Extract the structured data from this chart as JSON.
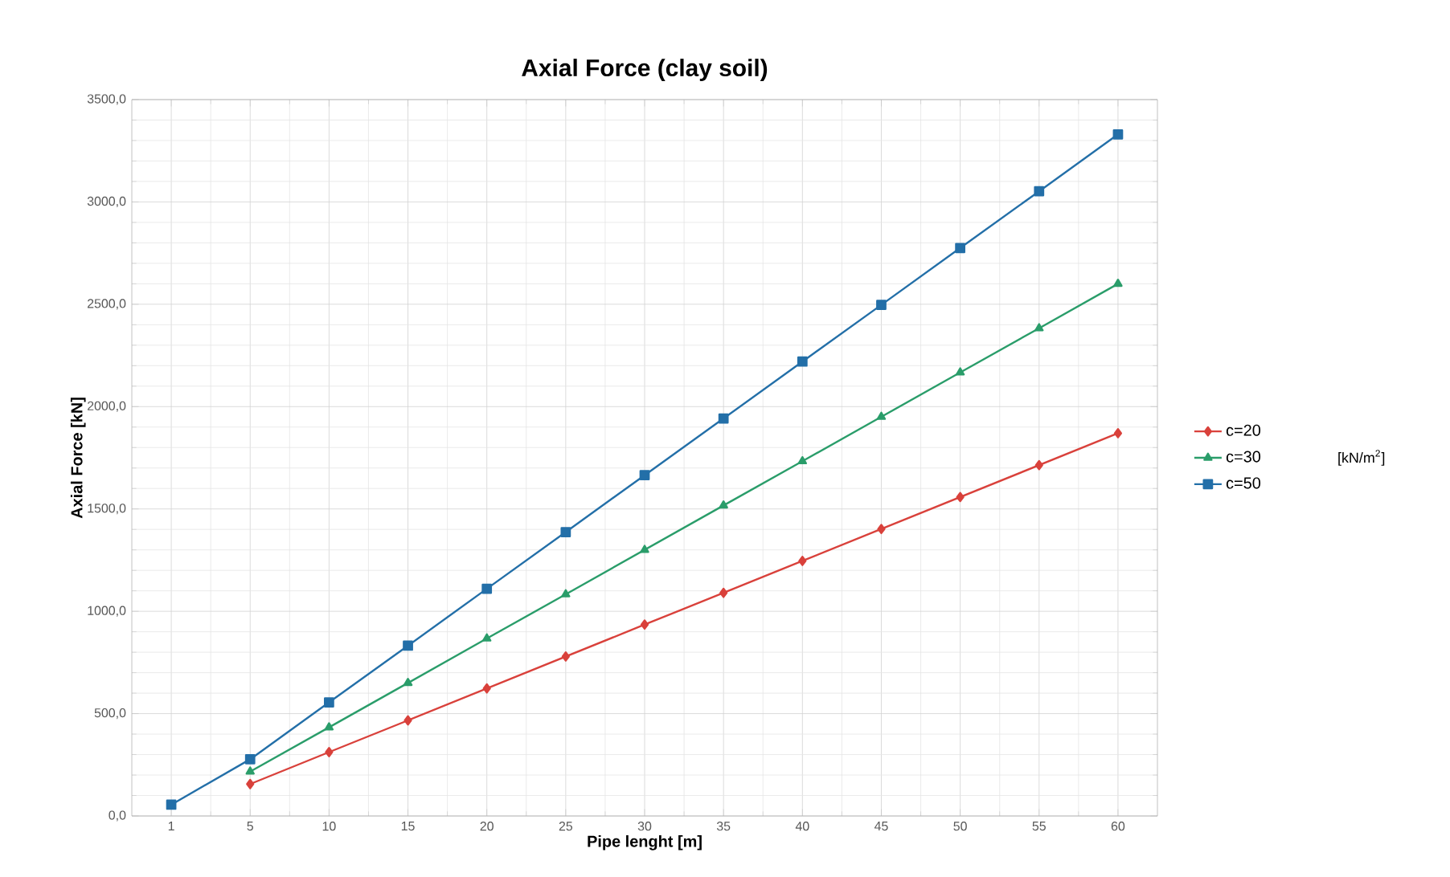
{
  "chart_data": {
    "type": "line",
    "title": "Axial Force (clay soil)",
    "xlabel": "Pipe lenght [m]",
    "ylabel": "Axial Force [kN]",
    "legend_title": "[kN/m$^{2}$]",
    "categories": [
      "1",
      "5",
      "10",
      "15",
      "20",
      "25",
      "30",
      "35",
      "40",
      "45",
      "50",
      "55",
      "60"
    ],
    "series": [
      {
        "name": "c=20",
        "color": "#d9413b",
        "marker": "diamond",
        "values": [
          null,
          156,
          312,
          467,
          623,
          779,
          935,
          1090,
          1246,
          1402,
          1558,
          1714,
          1870
        ]
      },
      {
        "name": "c=30",
        "color": "#2a9d6a",
        "marker": "triangle",
        "values": [
          null,
          217,
          433,
          650,
          867,
          1083,
          1300,
          1517,
          1733,
          1950,
          2167,
          2383,
          2600
        ]
      },
      {
        "name": "c=50",
        "color": "#236fa8",
        "marker": "square",
        "values": [
          55,
          277,
          555,
          832,
          1110,
          1387,
          1665,
          1942,
          2220,
          2497,
          2775,
          3052,
          3330
        ]
      }
    ],
    "ylim": [
      0,
      3500
    ],
    "yticks": [
      {
        "value": 0,
        "label": "0,0"
      },
      {
        "value": 500,
        "label": "500,0"
      },
      {
        "value": 1000,
        "label": "1000,0"
      },
      {
        "value": 1500,
        "label": "1500,0"
      },
      {
        "value": 2000,
        "label": "2000,0"
      },
      {
        "value": 2500,
        "label": "2500,0"
      },
      {
        "value": 3000,
        "label": "3000,0"
      },
      {
        "value": 3500,
        "label": "3500,0"
      }
    ],
    "grid": true,
    "legend": "right",
    "line_style": "solid"
  }
}
